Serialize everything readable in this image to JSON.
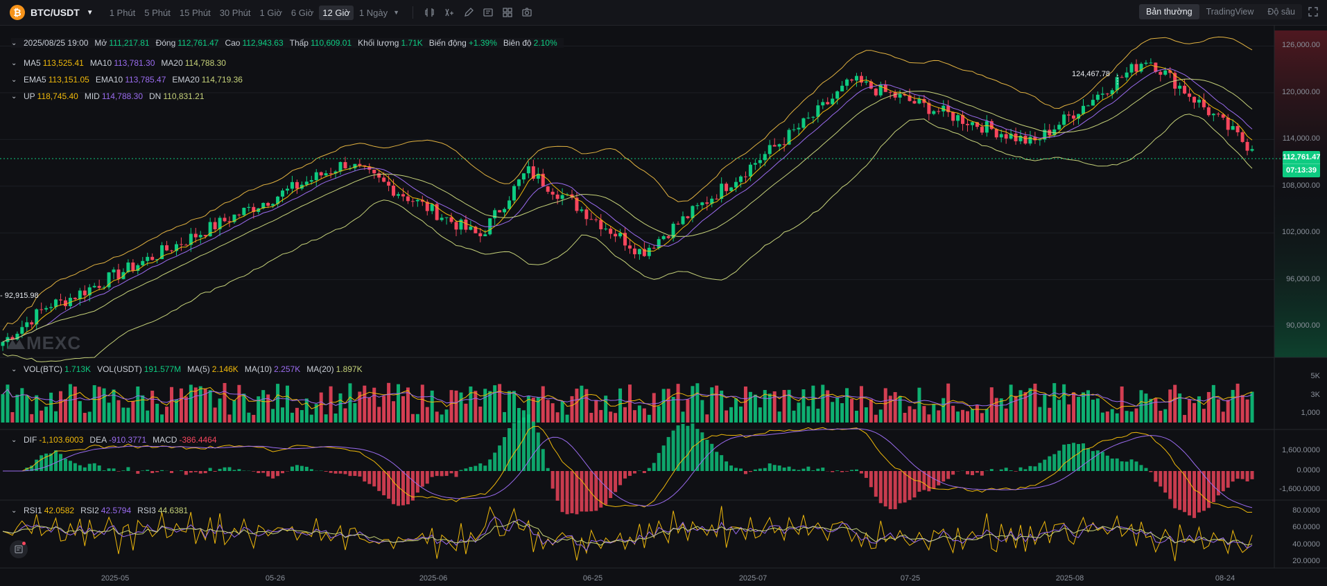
{
  "toolbar": {
    "pair": "BTC/USDT",
    "intervals": [
      "1 Phút",
      "5 Phút",
      "15 Phút",
      "30 Phút",
      "1 Giờ",
      "6 Giờ",
      "12 Giờ"
    ],
    "active_interval": "12 Giờ",
    "more_interval": "1 Ngày",
    "views": [
      "Bản thường",
      "TradingView",
      "Độ sâu"
    ],
    "active_view": "Bản thường"
  },
  "ohlc": {
    "date": "2025/08/25 19:00",
    "open_label": "Mở",
    "open": "111,217.81",
    "close_label": "Đóng",
    "close": "112,761.47",
    "high_label": "Cao",
    "high": "112,943.63",
    "low_label": "Thấp",
    "low": "110,609.01",
    "vol_label": "Khối lượng",
    "vol": "1.71K",
    "change_label": "Biến động",
    "change": "+1.39%",
    "amp_label": "Biên độ",
    "amp": "2.10%"
  },
  "ma": {
    "l1": "MA5",
    "v1": "113,525.41",
    "l2": "MA10",
    "v2": "113,781.30",
    "l3": "MA20",
    "v3": "114,788.30"
  },
  "ema": {
    "l1": "EMA5",
    "v1": "113,151.05",
    "l2": "EMA10",
    "v2": "113,785.47",
    "l3": "EMA20",
    "v3": "114,719.36"
  },
  "boll": {
    "l1": "UP",
    "v1": "118,745.40",
    "l2": "MID",
    "v2": "114,788.30",
    "l3": "DN",
    "v3": "110,831.21"
  },
  "vol_legend": {
    "l1": "VOL(BTC)",
    "v1": "1.713K",
    "l2": "VOL(USDT)",
    "v2": "191.577M",
    "l3": "MA(5)",
    "v3": "2.146K",
    "l4": "MA(10)",
    "v4": "2.257K",
    "l5": "MA(20)",
    "v5": "1.897K"
  },
  "macd_legend": {
    "l1": "DIF",
    "v1": "-1,103.6003",
    "l2": "DEA",
    "v2": "-910.3771",
    "l3": "MACD",
    "v3": "-386.4464"
  },
  "rsi_legend": {
    "l1": "RSI1",
    "v1": "42.0582",
    "l2": "RSI2",
    "v2": "42.5794",
    "l3": "RSI3",
    "v3": "44.6381"
  },
  "price_axis": [
    "126,000.00",
    "120,000.00",
    "114,000.00",
    "108,000.00",
    "102,000.00",
    "96,000.00",
    "90,000.00"
  ],
  "vol_axis": [
    "5K",
    "3K",
    "1,000"
  ],
  "macd_axis": [
    "1,600.0000",
    "0.0000",
    "-1,600.0000"
  ],
  "rsi_axis": [
    "80.0000",
    "60.0000",
    "40.0000",
    "20.0000"
  ],
  "current_price": "112,761.47",
  "countdown": "07:13:39",
  "high_marker": "124,467.78",
  "low_marker": "92,915.98",
  "watermark": "MEXC",
  "dates": [
    "2025-05",
    "05-26",
    "2025-06",
    "06-25",
    "2025-07",
    "07-25",
    "2025-08",
    "08-24"
  ],
  "colors": {
    "up": "#0ecb81",
    "down": "#f6465d",
    "ma5": "#f0b90b",
    "ma10": "#9b6cf0",
    "ma20": "#c7d37a",
    "boll": "#e3b341"
  },
  "chart_data": {
    "type": "candlestick",
    "title": "BTC/USDT",
    "interval": "12 Giờ",
    "x_range": [
      "2025-04-16",
      "2025-08-25"
    ],
    "y_range": [
      86000,
      128000
    ],
    "key_points": [
      {
        "date": "2025-04-22",
        "close": 93000
      },
      {
        "date": "2025-05-10",
        "close": 104000
      },
      {
        "date": "2025-05-22",
        "close": 111000
      },
      {
        "date": "2025-06-05",
        "close": 101500
      },
      {
        "date": "2025-06-10",
        "close": 110000
      },
      {
        "date": "2025-06-22",
        "close": 99500
      },
      {
        "date": "2025-07-10",
        "close": 117000
      },
      {
        "date": "2025-07-14",
        "close": 121500
      },
      {
        "date": "2025-08-02",
        "close": 113500
      },
      {
        "date": "2025-08-14",
        "close": 124467.78
      },
      {
        "date": "2025-08-25",
        "close": 112761.47
      }
    ]
  }
}
